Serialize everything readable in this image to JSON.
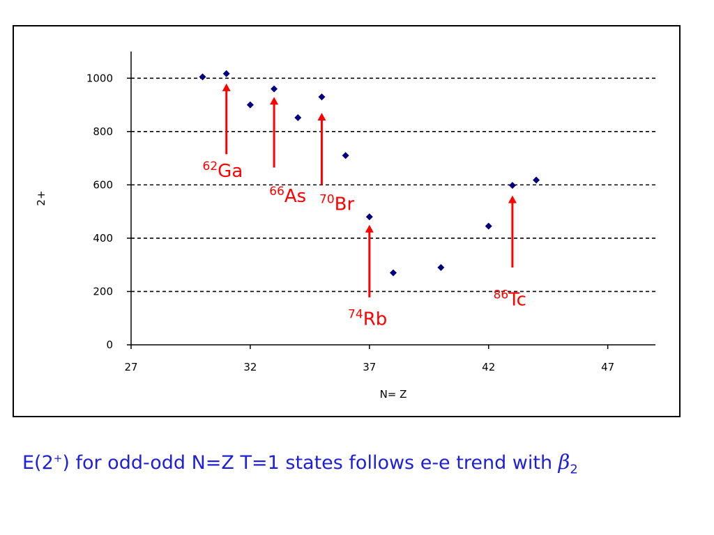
{
  "chart_data": {
    "type": "scatter",
    "xlabel": "N= Z",
    "ylabel": "2+",
    "xlim": [
      27,
      49
    ],
    "ylim": [
      0,
      1100
    ],
    "x_ticks": [
      27,
      32,
      37,
      42,
      47
    ],
    "y_ticks": [
      0,
      200,
      400,
      600,
      800,
      1000
    ],
    "grid": "horizontal-dashed",
    "series": [
      {
        "color": "#000080",
        "points": [
          {
            "x": 30,
            "y": 1005
          },
          {
            "x": 31,
            "y": 1017
          },
          {
            "x": 32,
            "y": 900
          },
          {
            "x": 33,
            "y": 960
          },
          {
            "x": 34,
            "y": 852
          },
          {
            "x": 35,
            "y": 930
          },
          {
            "x": 36,
            "y": 710
          },
          {
            "x": 37,
            "y": 480
          },
          {
            "x": 38,
            "y": 270
          },
          {
            "x": 40,
            "y": 290
          },
          {
            "x": 42,
            "y": 445
          },
          {
            "x": 43,
            "y": 598
          },
          {
            "x": 44,
            "y": 618
          }
        ]
      }
    ],
    "annotations": [
      {
        "mass": "62",
        "element": "Ga",
        "arrow_x": 31,
        "arrow_from_y": 715,
        "arrow_to_y": 980,
        "label_x": 30.0,
        "label_y": 630
      },
      {
        "mass": "66",
        "element": "As",
        "arrow_x": 33,
        "arrow_from_y": 665,
        "arrow_to_y": 930,
        "label_x": 32.8,
        "label_y": 535
      },
      {
        "mass": "70",
        "element": "Br",
        "arrow_x": 35,
        "arrow_from_y": 600,
        "arrow_to_y": 870,
        "label_x": 34.9,
        "label_y": 505
      },
      {
        "mass": "74",
        "element": "Rb",
        "arrow_x": 37,
        "arrow_from_y": 178,
        "arrow_to_y": 450,
        "label_x": 36.1,
        "label_y": 75
      },
      {
        "mass": "86",
        "element": "Tc",
        "arrow_x": 43,
        "arrow_from_y": 290,
        "arrow_to_y": 560,
        "label_x": 42.2,
        "label_y": 148
      }
    ],
    "marker_color": "#000080",
    "annotation_color": "#ff0000"
  },
  "caption": {
    "prefix": "E(2",
    "sup": "+",
    "middle": ") for odd-odd N=Z T=1 states follows e-e trend with ",
    "symbol": "β",
    "sub": "2"
  }
}
